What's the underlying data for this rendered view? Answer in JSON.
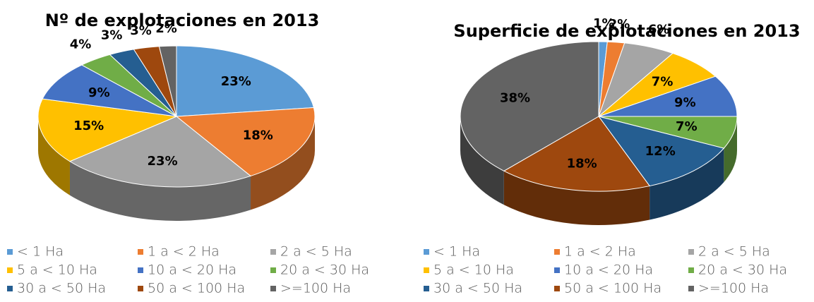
{
  "chart_data": [
    {
      "type": "pie",
      "title": "Nº de explotaciones en 2013",
      "categories": [
        "< 1 Ha",
        "1 a < 2 Ha",
        "2 a < 5 Ha",
        "5 a < 10 Ha",
        "10 a < 20 Ha",
        "20 a < 30 Ha",
        "30 a < 50 Ha",
        "50 a < 100 Ha",
        ">=100 Ha"
      ],
      "values": [
        23,
        18,
        23,
        15,
        9,
        4,
        3,
        3,
        2
      ],
      "value_labels": [
        "23%",
        "18%",
        "23%",
        "15%",
        "9%",
        "4%",
        "3%",
        "3%",
        "2%"
      ],
      "colors": [
        "#5b9bd5",
        "#ed7d31",
        "#a5a5a5",
        "#ffc000",
        "#4472c4",
        "#70ad47",
        "#255e91",
        "#9e480e",
        "#636363"
      ],
      "legend": "bottom"
    },
    {
      "type": "pie",
      "title": "Superficie de explotaciones en 2013",
      "categories": [
        "< 1 Ha",
        "1 a < 2 Ha",
        "2 a < 5 Ha",
        "5 a < 10 Ha",
        "10 a < 20 Ha",
        "20 a < 30 Ha",
        "30 a < 50 Ha",
        "50 a < 100 Ha",
        ">=100 Ha"
      ],
      "values": [
        1,
        2,
        6,
        7,
        9,
        7,
        12,
        18,
        38
      ],
      "value_labels": [
        "1%",
        "2%",
        "6%",
        "7%",
        "9%",
        "7%",
        "12%",
        "18%",
        "38%"
      ],
      "colors": [
        "#5b9bd5",
        "#ed7d31",
        "#a5a5a5",
        "#ffc000",
        "#4472c4",
        "#70ad47",
        "#255e91",
        "#9e480e",
        "#636363"
      ],
      "legend": "bottom"
    }
  ]
}
